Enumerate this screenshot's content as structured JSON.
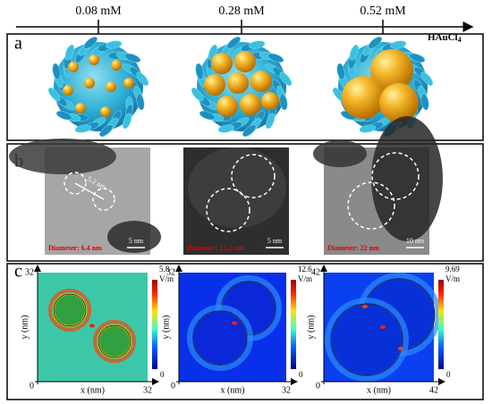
{
  "timeline": {
    "concentrations": [
      "0.08 mM",
      "0.28 mM",
      "0.52 mM"
    ],
    "reagent": {
      "text": "HAuCl",
      "subscript": "4"
    }
  },
  "panels": {
    "a": {
      "label": "a"
    },
    "b": {
      "label": "b",
      "images": [
        {
          "measurement": "5.2 nm",
          "diameter": "Diameter: 6.4 nm",
          "scale_bar": "5 nm"
        },
        {
          "diameter": "Diameter: 12.2 nm",
          "scale_bar": "5 nm"
        },
        {
          "diameter": "Diameter: 22 nm",
          "scale_bar": "10 nm"
        }
      ]
    },
    "c": {
      "label": "c",
      "maps": [
        {
          "x_label": "x (nm)",
          "y_label": "y (nm)",
          "origin": "0",
          "x_max": "32",
          "y_max": "32",
          "colorbar_max": "5.8",
          "colorbar_unit": "V/m",
          "colorbar_min": "0"
        },
        {
          "x_label": "x (nm)",
          "y_label": "y (nm)",
          "origin": "0",
          "x_max": "32",
          "y_max": "32",
          "colorbar_max": "12.6",
          "colorbar_unit": "V/m",
          "colorbar_min": "0"
        },
        {
          "x_label": "x (nm)",
          "y_label": "y (nm)",
          "origin": "0",
          "x_max": "42",
          "y_max": "42",
          "colorbar_max": "9.69",
          "colorbar_unit": "V/m",
          "colorbar_min": "0"
        }
      ]
    }
  }
}
